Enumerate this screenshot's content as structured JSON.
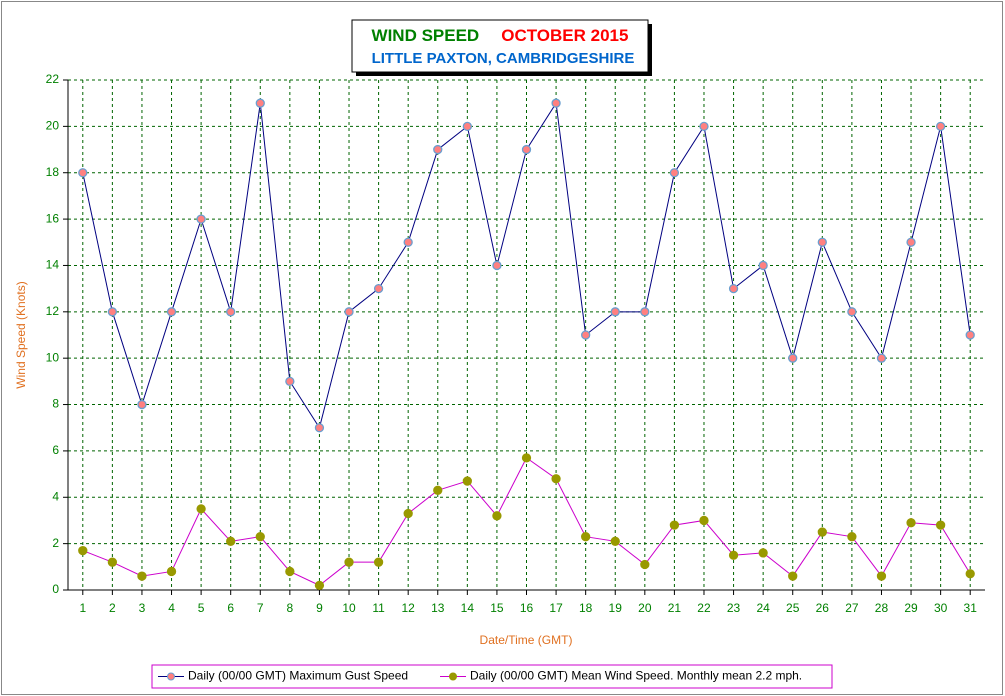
{
  "chart_data": {
    "type": "line",
    "title": "WIND SPEED",
    "title_date": "OCTOBER 2015",
    "subtitle": "LITTLE PAXTON, CAMBRIDGESHIRE",
    "x_label": "Date/Time (GMT)",
    "y_label": "Wind Speed (Knots)",
    "categories": [
      "1",
      "2",
      "3",
      "4",
      "5",
      "6",
      "7",
      "8",
      "9",
      "10",
      "11",
      "12",
      "13",
      "14",
      "15",
      "16",
      "17",
      "18",
      "19",
      "20",
      "21",
      "22",
      "23",
      "24",
      "25",
      "26",
      "27",
      "28",
      "29",
      "30",
      "31"
    ],
    "series": [
      {
        "name": "Daily (00/00 GMT) Maximum Gust Speed",
        "color": "#000080",
        "marker_fill": "#ff8080",
        "marker_stroke": "#6a9fd0",
        "values": [
          18,
          12,
          8,
          12,
          16,
          12,
          21,
          9,
          7,
          12,
          13,
          15,
          19,
          20,
          14,
          19,
          21,
          11,
          12,
          12,
          18,
          20,
          13,
          14,
          10,
          15,
          12,
          10,
          15,
          20,
          11
        ]
      },
      {
        "name": "Daily (00/00 GMT) Mean Wind Speed. Monthly mean 2.2 mph.",
        "color": "#cc00cc",
        "marker_fill": "#999900",
        "marker_stroke": "#999900",
        "values": [
          1.7,
          1.2,
          0.6,
          0.8,
          3.5,
          2.1,
          2.3,
          0.8,
          0.2,
          1.2,
          1.2,
          3.3,
          4.3,
          4.7,
          3.2,
          5.7,
          4.8,
          2.3,
          2.1,
          1.1,
          2.8,
          3.0,
          1.5,
          1.6,
          0.6,
          2.5,
          2.3,
          0.6,
          2.9,
          2.8,
          0.7
        ]
      }
    ],
    "ylim": [
      0,
      22
    ],
    "yticks": [
      0,
      2,
      4,
      6,
      8,
      10,
      12,
      14,
      16,
      18,
      20,
      22
    ],
    "grid": true,
    "legend": "bottom"
  }
}
